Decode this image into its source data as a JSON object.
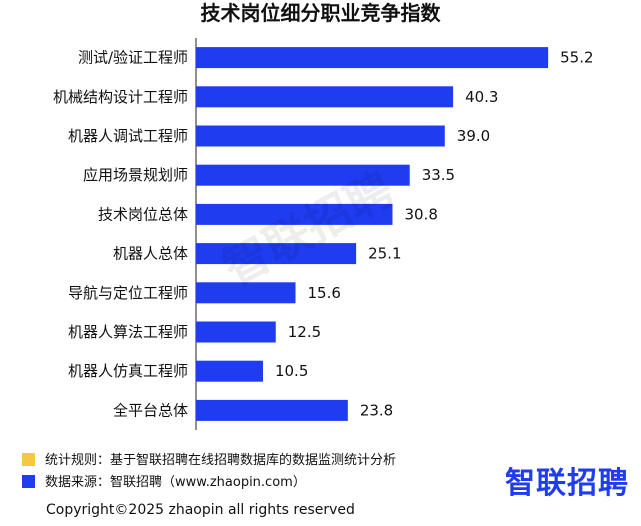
{
  "title": "技术岗位细分职业竞争指数",
  "watermark": "智联招聘",
  "colors": {
    "bar": "#1f3cf0",
    "note_rule": "#f5c842",
    "note_source": "#1f3cf0"
  },
  "chart_data": {
    "type": "bar",
    "orientation": "horizontal",
    "categories": [
      "测试/验证工程师",
      "机械结构设计工程师",
      "机器人调试工程师",
      "应用场景规划师",
      "技术岗位总体",
      "机器人总体",
      "导航与定位工程师",
      "机器人算法工程师",
      "机器人仿真工程师",
      "全平台总体"
    ],
    "values": [
      55.2,
      40.3,
      39.0,
      33.5,
      30.8,
      25.1,
      15.6,
      12.5,
      10.5,
      23.8
    ],
    "value_labels": [
      "55.2",
      "40.3",
      "39.0",
      "33.5",
      "30.8",
      "25.1",
      "15.6",
      "12.5",
      "10.5",
      "23.8"
    ],
    "xlim": [
      0,
      58
    ],
    "grid": false,
    "legend": "none"
  },
  "footer": {
    "rule_note": "统计规则：基于智联招聘在线招聘数据库的数据监测统计分析",
    "source_note": "数据来源：智联招聘（www.zhaopin.com）",
    "logo": "智联招聘",
    "copyright": "Copyright©2025 zhaopin all rights reserved"
  }
}
